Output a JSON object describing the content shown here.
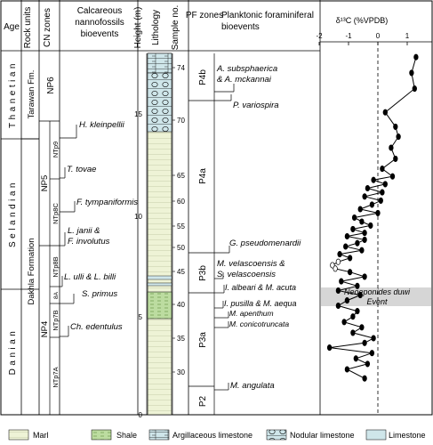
{
  "headers": {
    "age": "Age",
    "rock_units": "Rock units",
    "cn_zones": "CN zones",
    "nanno": [
      "Calcareous",
      "nannofossils",
      "bioevents"
    ],
    "height": "Height (m)",
    "lithology": "Lithology",
    "sample_no": "Sample no.",
    "pf_zones": "PF zones",
    "pf_bio": [
      "Planktonic foraminiferal",
      "bioevents"
    ],
    "isotope": "δ¹³C (%VPDB)"
  },
  "ages": [
    "Thanetian",
    "Selandian",
    "Danian"
  ],
  "formations": [
    "Tarawan Fm.",
    "Dakhla Formation"
  ],
  "cn_big": [
    "NP6",
    "NP5",
    "NP4"
  ],
  "cn_small": [
    "NTp9",
    "NTp8C",
    "NTp8B",
    "8A",
    "NTp7B",
    "NTp7A"
  ],
  "nanno_events": [
    {
      "lines": [
        "H. kleinpellii"
      ]
    },
    {
      "lines": [
        "T. tovae"
      ]
    },
    {
      "lines": [
        "F. tympaniformis"
      ]
    },
    {
      "lines": [
        "L. janii &",
        "F. involutus"
      ]
    },
    {
      "lines": [
        "L. ulli & L. billi"
      ]
    },
    {
      "lines": [
        "S. primus"
      ]
    },
    {
      "lines": [
        "Ch. edentulus"
      ]
    }
  ],
  "height_ticks": [
    "15",
    "10",
    "5",
    "0"
  ],
  "sample_ticks": [
    "74",
    "70",
    "65",
    "60",
    "55",
    "50",
    "45",
    "40",
    "35",
    "30"
  ],
  "pf_zones": [
    "P4b",
    "P4a",
    "P3b",
    "P3a",
    "P2"
  ],
  "pf_events": [
    {
      "lines": [
        "A. subsphaerica",
        "& A. mckannai"
      ]
    },
    {
      "lines": [
        "P. variospira"
      ]
    },
    {
      "lines": [
        "G. pseudomenardii"
      ]
    },
    {
      "lines": [
        "M. velascoensis &",
        "S. velascoensis"
      ]
    },
    {
      "lines": [
        "I. albeari & M. acuta"
      ]
    },
    {
      "lines": [
        "I. pusilla & M. aequa"
      ]
    },
    {
      "lines": [
        "M. apenthum"
      ]
    },
    {
      "lines": [
        "M. conicotruncata"
      ]
    },
    {
      "lines": [
        "M. angulata"
      ]
    }
  ],
  "event_label": [
    "Neoeponides duwi",
    "Event"
  ],
  "isotope_axis": {
    "ticks": [
      -2,
      -1,
      0,
      1
    ]
  },
  "isotope_points": [
    [
      1.3,
      74.8
    ],
    [
      1.15,
      73.6
    ],
    [
      1.25,
      72.4
    ],
    [
      0.25,
      70.6
    ],
    [
      0.6,
      69.4
    ],
    [
      0.7,
      68.5
    ],
    [
      0.45,
      67.5
    ],
    [
      0.6,
      66.5
    ],
    [
      0.15,
      65.6
    ],
    [
      0.5,
      64.8
    ],
    [
      -0.15,
      64.1
    ],
    [
      0.25,
      63.3
    ],
    [
      -0.35,
      62.5
    ],
    [
      0.15,
      61.7
    ],
    [
      -0.45,
      60.9
    ],
    [
      0.1,
      60.1
    ],
    [
      -0.2,
      59.3
    ],
    [
      -0.6,
      58.4
    ],
    [
      0.0,
      57.6
    ],
    [
      -0.8,
      56.7
    ],
    [
      -0.55,
      55.9
    ],
    [
      -0.25,
      55.1
    ],
    [
      -0.85,
      54.3
    ],
    [
      -0.45,
      53.4
    ],
    [
      -1.05,
      52.6
    ],
    [
      -0.45,
      51.8
    ],
    [
      -0.7,
      51.0
    ],
    [
      -1.1,
      50.2
    ],
    [
      -0.55,
      49.4
    ],
    [
      -1.3,
      48.6
    ],
    [
      -0.95,
      47.8
    ],
    [
      -1.35,
      47.0
    ],
    [
      -1.55,
      46.3
    ],
    [
      -1.45,
      45.6
    ],
    [
      -0.95,
      44.9
    ],
    [
      -0.45,
      44.2
    ],
    [
      -1.25,
      43.5
    ],
    [
      -0.7,
      42.8
    ],
    [
      -1.35,
      42.1
    ],
    [
      -0.6,
      41.4
    ],
    [
      -1.05,
      40.6
    ],
    [
      -1.35,
      39.8
    ],
    [
      -0.7,
      39.0
    ],
    [
      -0.85,
      38.2
    ],
    [
      -1.15,
      37.4
    ],
    [
      -0.55,
      36.6
    ],
    [
      -0.85,
      35.8
    ],
    [
      -0.15,
      35.0
    ],
    [
      -0.45,
      34.3
    ],
    [
      -1.65,
      33.6
    ],
    [
      -0.2,
      32.8
    ],
    [
      -0.75,
      32.0
    ],
    [
      -0.35,
      31.2
    ],
    [
      -1.05,
      30.4
    ],
    [
      -0.45,
      29.7
    ]
  ],
  "legend": [
    "Marl",
    "Shale",
    "Argillaceous limestone",
    "Nodular limestone",
    "Limestone"
  ],
  "colors": {
    "marl": "#eef3d6",
    "shale": "#bcdca0",
    "limestone": "#cfe6ea",
    "duwi_band": "#d6d6d6"
  }
}
